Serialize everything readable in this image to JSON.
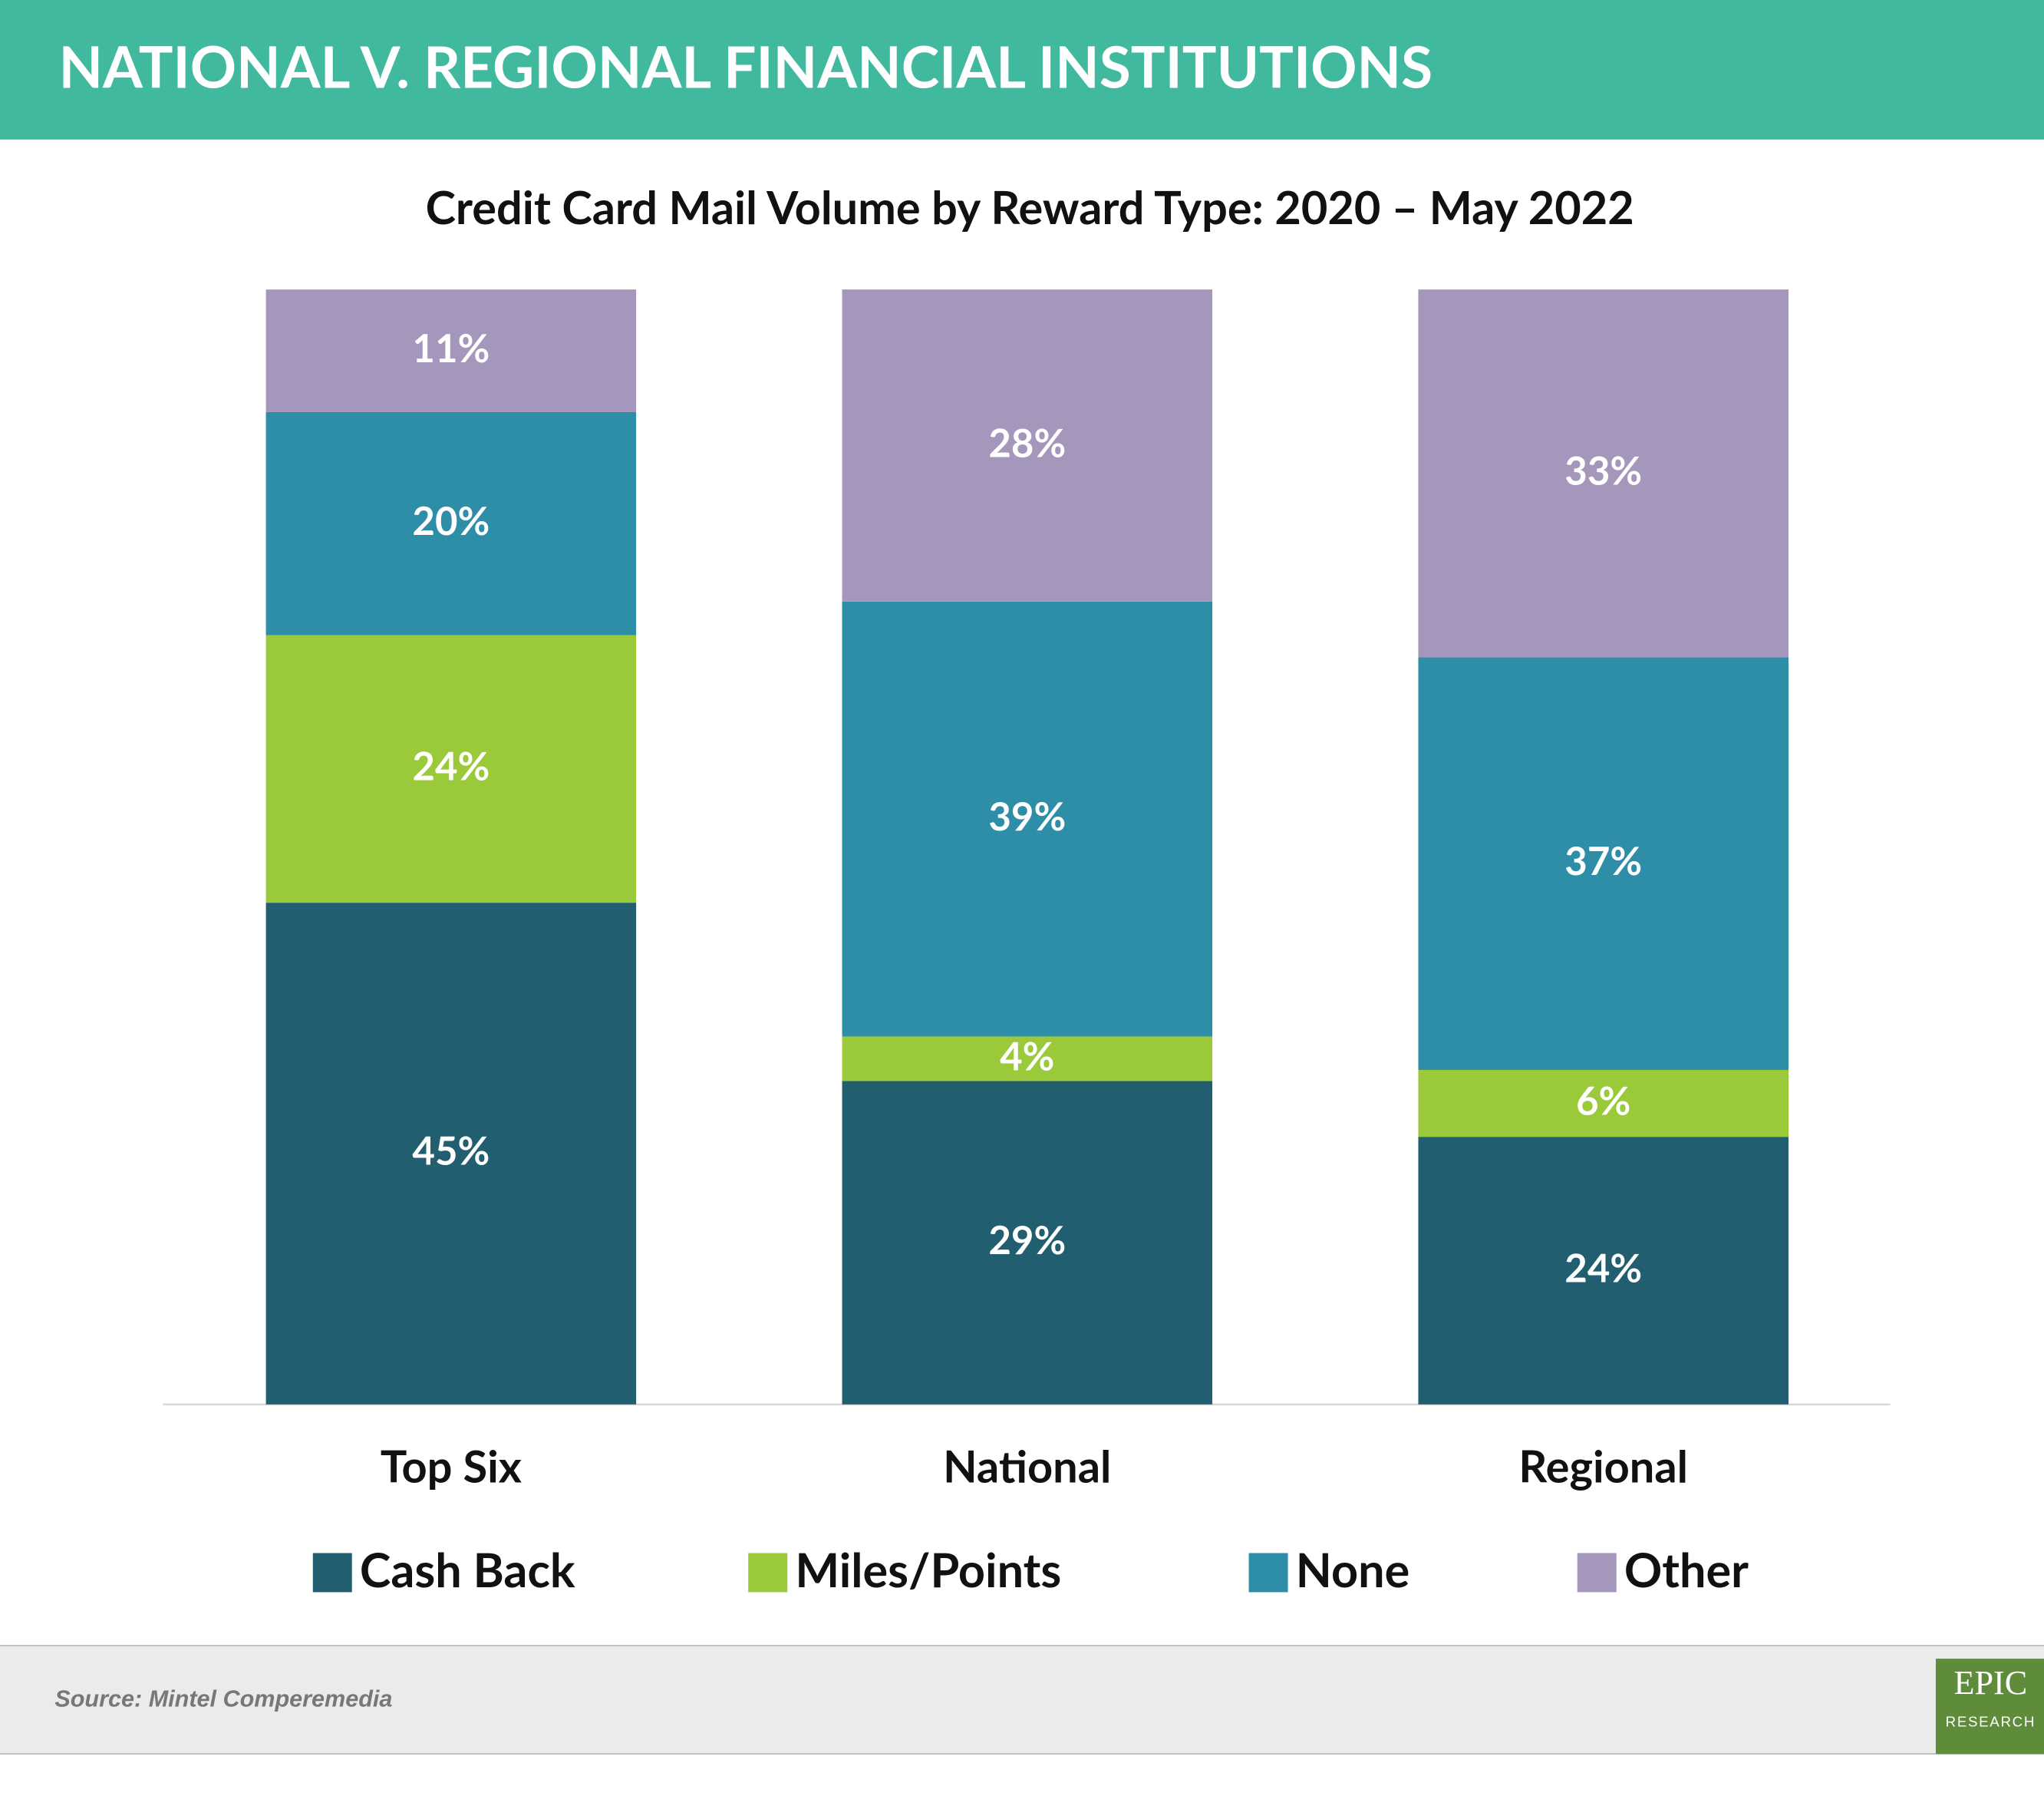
{
  "header": {
    "title": "NATIONAL V. REGIONAL FINANCIAL INSTITUTIONS"
  },
  "chart_data": {
    "type": "stacked_bar",
    "title": "Credit Card Mail Volume by Reward Type: 2020 – May 2022",
    "categories": [
      "Top Six",
      "National",
      "Regional"
    ],
    "series": [
      {
        "name": "Cash Back",
        "color": "#215f70",
        "values": [
          45,
          29,
          24
        ],
        "value_labels": [
          "45%",
          "29%",
          "24%"
        ]
      },
      {
        "name": "Miles/Points",
        "color": "#9ac93a",
        "values": [
          24,
          4,
          6
        ],
        "value_labels": [
          "24%",
          "4%",
          "6%"
        ]
      },
      {
        "name": "None",
        "color": "#2e8ea8",
        "values": [
          20,
          39,
          37
        ],
        "value_labels": [
          "20%",
          "39%",
          "37%"
        ]
      },
      {
        "name": "Other",
        "color": "#a596bb",
        "values": [
          11,
          28,
          33
        ],
        "value_labels": [
          "11%",
          "28%",
          "33%"
        ]
      }
    ],
    "ylim": [
      0,
      100
    ],
    "legend": "bottom"
  },
  "footer": {
    "source": "Source: Mintel Comperemedia",
    "logo_top": "EPIC",
    "logo_bottom": "RESEARCH"
  }
}
